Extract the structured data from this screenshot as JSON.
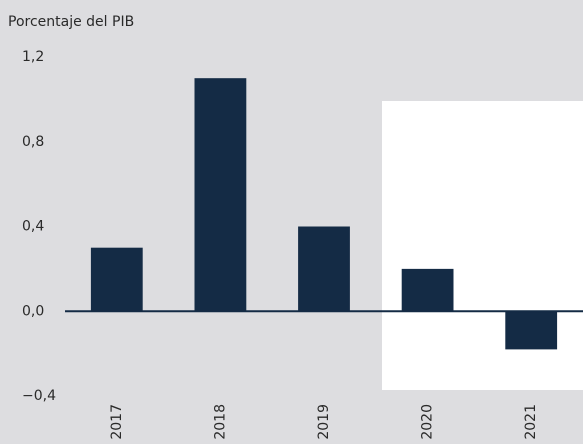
{
  "chart_data": {
    "type": "bar",
    "y_label": "Porcentaje del PIB",
    "categories": [
      "2017",
      "2018",
      "2019",
      "2020",
      "2021"
    ],
    "values": [
      0.3,
      1.1,
      0.4,
      0.2,
      -0.18
    ],
    "color": "#142b45",
    "ylim": [
      -0.4,
      1.2
    ],
    "yticks": [
      {
        "value": -0.4,
        "label": "−0,4"
      },
      {
        "value": 0,
        "label": "0,0"
      },
      {
        "value": 0.4,
        "label": "0,4"
      },
      {
        "value": 0.8,
        "label": "0,8"
      },
      {
        "value": 1.2,
        "label": "1,2"
      }
    ],
    "grid": false
  }
}
